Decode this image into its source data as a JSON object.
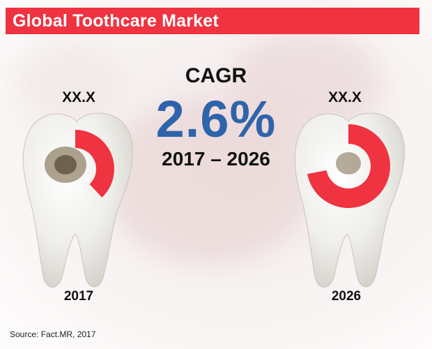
{
  "title": "Global Toothcare Market",
  "cagr": {
    "label": "CAGR",
    "value": "2.6%",
    "period": "2017 – 2026"
  },
  "chart_data": {
    "type": "donut",
    "series": [
      {
        "year": "2017",
        "value_label": "XX.X",
        "share": 0.38
      },
      {
        "year": "2026",
        "value_label": "XX.X",
        "share": 0.72
      }
    ]
  },
  "colors": {
    "accent": "#ef3340",
    "cagr_blue": "#2e64aa"
  },
  "source": "Source: Fact.MR, 2017"
}
